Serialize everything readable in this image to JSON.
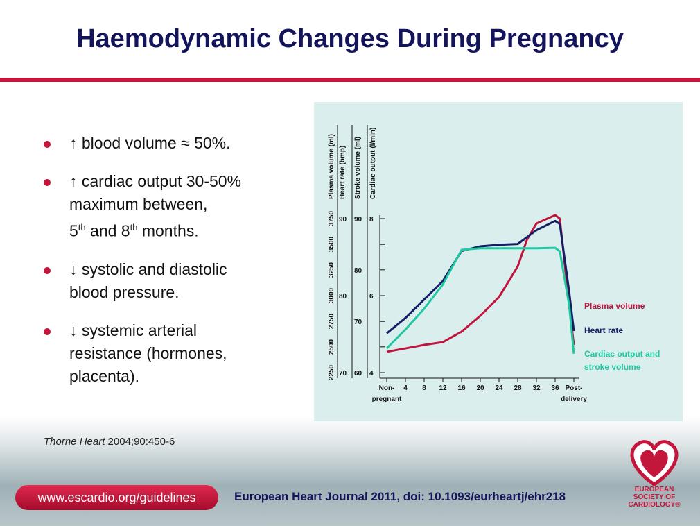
{
  "title": "Haemodynamic Changes During Pregnancy",
  "bullets": [
    [
      [
        {
          "t": "↑ blood volume ≈ 50%."
        }
      ]
    ],
    [
      [
        {
          "t": "↑ cardiac output 30-50%"
        }
      ],
      [
        {
          "t": "maximum between,"
        }
      ],
      [
        {
          "t": "5"
        },
        {
          "sup": "th"
        },
        {
          "t": " and 8"
        },
        {
          "sup": "th"
        },
        {
          "t": " months."
        }
      ]
    ],
    [
      [
        {
          "t": "↓ systolic and diastolic"
        }
      ],
      [
        {
          "t": "blood pressure."
        }
      ]
    ],
    [
      [
        {
          "t": "↓ systemic arterial"
        }
      ],
      [
        {
          "t": "resistance (hormones,"
        }
      ],
      [
        {
          "t": "placenta)."
        }
      ]
    ]
  ],
  "citation": {
    "journal": "Thorne Heart",
    "ref": " 2004;90:450-6"
  },
  "footer": {
    "link": "www.escardio.org/guidelines",
    "source": "European Heart Journal 2011, doi: 10.1093/eurheartj/ehr218"
  },
  "logo": [
    "EUROPEAN",
    "SOCIETY OF",
    "CARDIOLOGY®"
  ],
  "figure": {
    "type": "line",
    "xlim": [
      0,
      40
    ],
    "xticks": [
      {
        "value": 0,
        "label": "Non-pregnant"
      },
      4,
      8,
      12,
      16,
      20,
      24,
      28,
      32,
      36,
      {
        "value": 40,
        "label": "Post-delivery"
      }
    ],
    "axes": [
      {
        "label": "Plasma volume (ml)",
        "lim": [
          2250,
          3750
        ],
        "ticks": [
          2250,
          2500,
          2750,
          3000,
          3250,
          3500,
          3750
        ]
      },
      {
        "label": "Heart rate (bmp)",
        "lim": [
          70,
          90
        ],
        "ticks": [
          70,
          80,
          90
        ]
      },
      {
        "label": "Stroke volume (ml)",
        "lim": [
          60,
          90
        ],
        "ticks": [
          60,
          70,
          80,
          90
        ]
      },
      {
        "label": "Cardiac output (l/min)",
        "lim": [
          4,
          8
        ],
        "ticks": [
          4,
          6,
          8
        ],
        "minor_ticks": [
          4.67,
          5.33,
          6.67,
          7.33
        ]
      }
    ],
    "series": [
      {
        "name": "Plasma volume",
        "color": "#c0143c",
        "axis": 0,
        "x": [
          0,
          4,
          8,
          12,
          16,
          20,
          24,
          28,
          30,
          32,
          36,
          37,
          39,
          40
        ],
        "values": [
          2453,
          2486,
          2520,
          2547,
          2649,
          2804,
          2986,
          3284,
          3547,
          3703,
          3784,
          3750,
          2905,
          2520
        ]
      },
      {
        "name": "Heart rate",
        "color": "#141e64",
        "axis": 1,
        "x": [
          0,
          4,
          8,
          12,
          16,
          20,
          24,
          28,
          32,
          36,
          37,
          39,
          40
        ],
        "values": [
          75.1,
          77.1,
          79.5,
          81.9,
          85.8,
          86.4,
          86.6,
          86.7,
          88.5,
          89.7,
          89.3,
          80.5,
          75.4
        ]
      },
      {
        "name": "Cardiac output and stroke volume",
        "color": "#1ec8a0",
        "axis": 3,
        "x": [
          0,
          4,
          8,
          12,
          16,
          20,
          24,
          28,
          32,
          36,
          37,
          39,
          40
        ],
        "values": [
          4.63,
          5.12,
          5.66,
          6.29,
          7.19,
          7.23,
          7.23,
          7.23,
          7.23,
          7.24,
          7.15,
          5.75,
          4.49
        ]
      }
    ]
  }
}
